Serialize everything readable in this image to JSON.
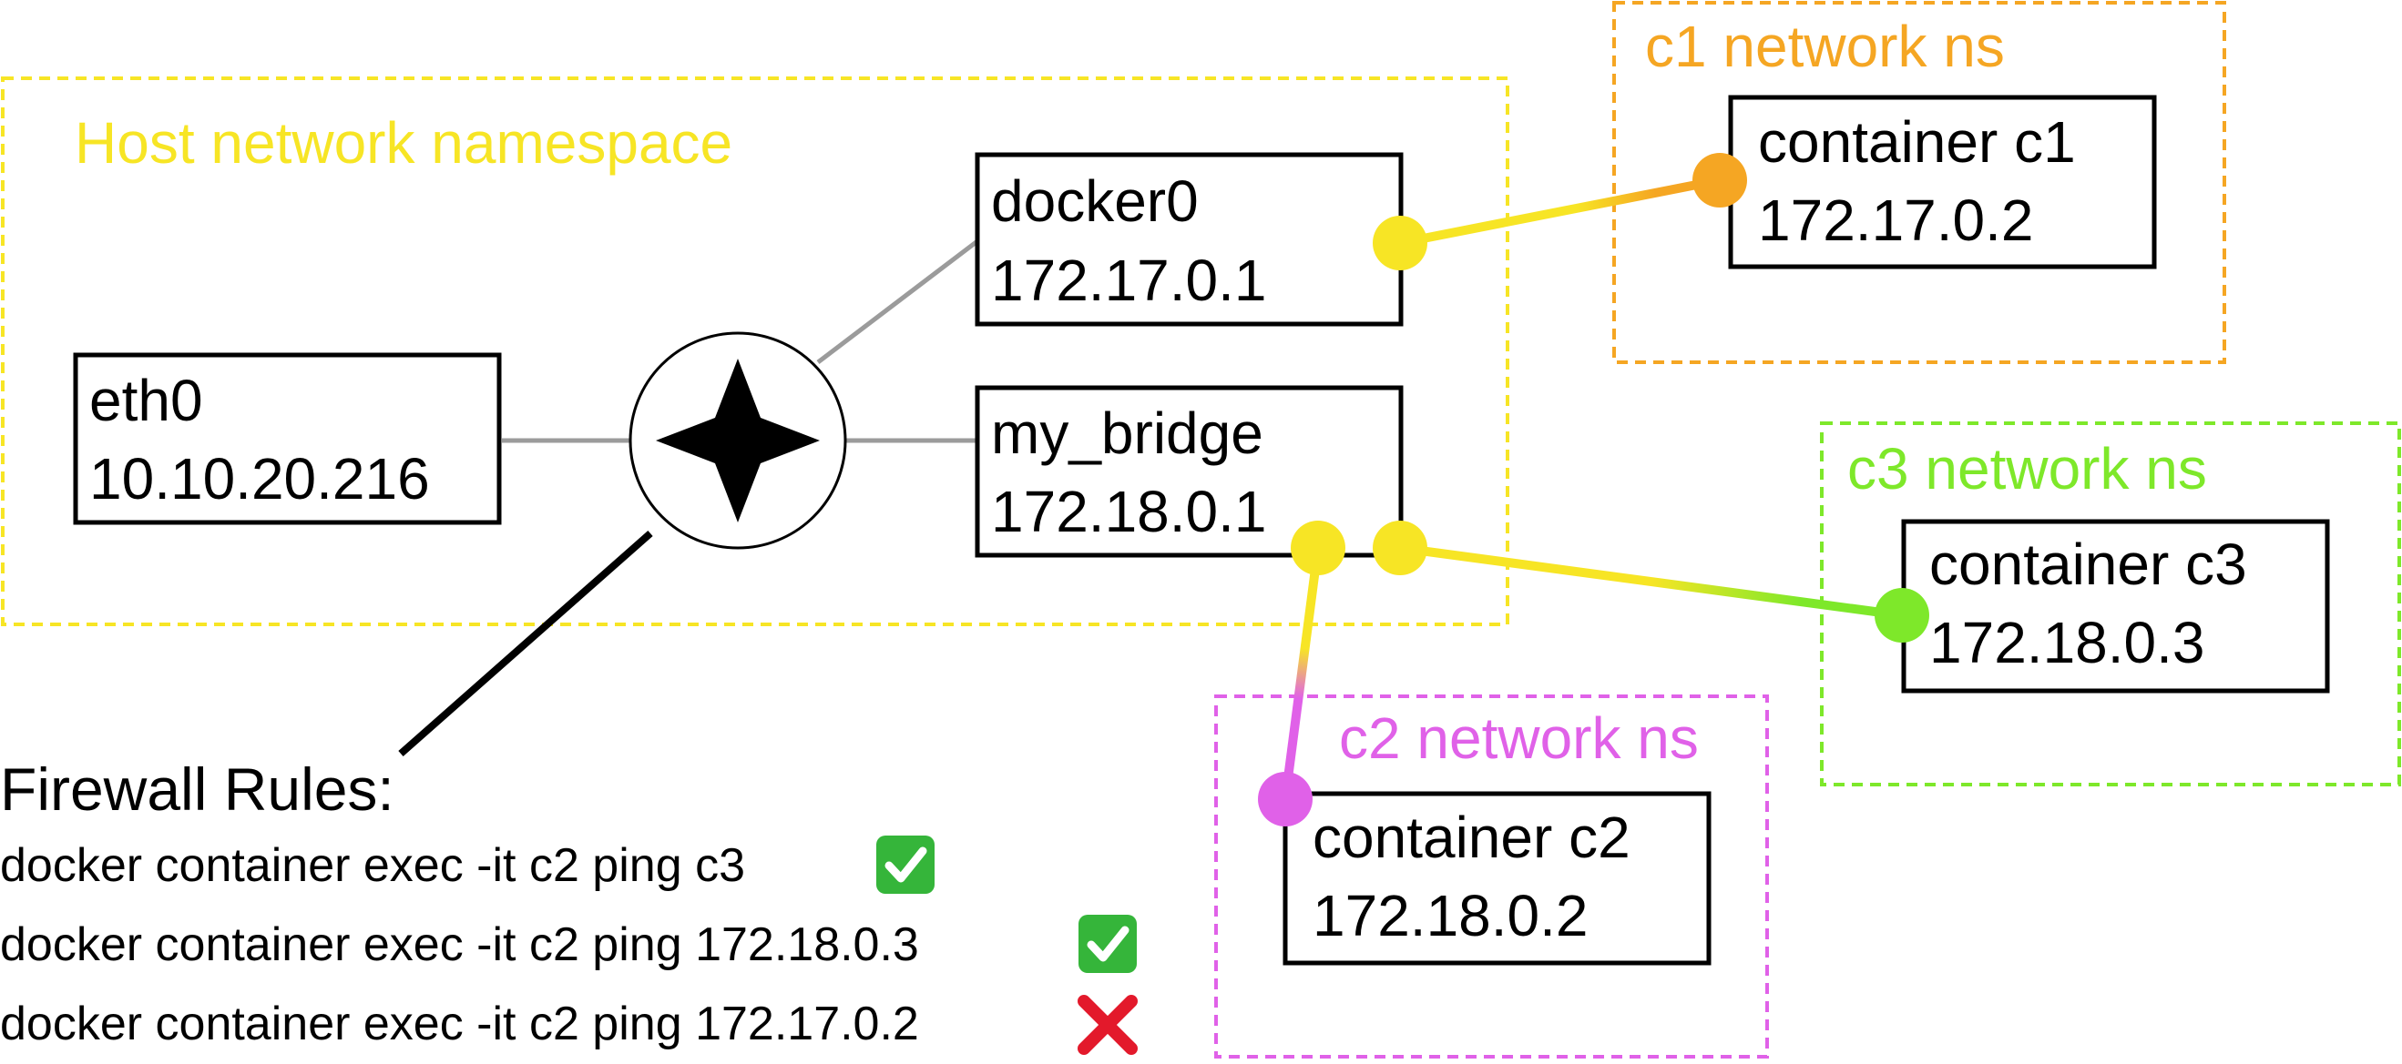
{
  "colors": {
    "host": "#f7e525",
    "c1": "#f5a623",
    "c2": "#e061e8",
    "c3": "#7ee82a",
    "wire": "#9b9b9b",
    "ink": "#000000",
    "check": "#35b53a",
    "cross": "#e3192b"
  },
  "namespaces": {
    "host": "Host network namespace",
    "c1": "c1 network ns",
    "c2": "c2 network ns",
    "c3": "c3 network ns"
  },
  "nodes": {
    "eth0": {
      "name": "eth0",
      "ip": "10.10.20.216"
    },
    "docker0": {
      "name": "docker0",
      "ip": "172.17.0.1"
    },
    "my_bridge": {
      "name": "my_bridge",
      "ip": "172.18.0.1"
    },
    "c1": {
      "name": "container c1",
      "ip": "172.17.0.2"
    },
    "c2": {
      "name": "container c2",
      "ip": "172.18.0.2"
    },
    "c3": {
      "name": "container c3",
      "ip": "172.18.0.3"
    }
  },
  "router": {
    "icon": "compass-star-icon"
  },
  "firewall": {
    "title": "Firewall Rules:",
    "rules": [
      {
        "command": "docker container exec -it c2 ping c3",
        "result": "allowed",
        "icon": "check-mark-icon"
      },
      {
        "command": "docker container exec -it c2 ping 172.18.0.3",
        "result": "allowed",
        "icon": "check-mark-icon"
      },
      {
        "command": "docker container exec -it c2 ping 172.17.0.2",
        "result": "blocked",
        "icon": "cross-mark-icon"
      }
    ]
  }
}
